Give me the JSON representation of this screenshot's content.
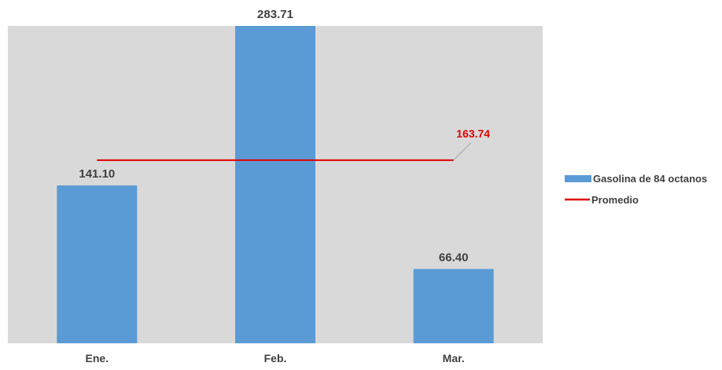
{
  "chart_data": {
    "type": "bar",
    "categories": [
      "Ene.",
      "Feb.",
      "Mar."
    ],
    "series": [
      {
        "name": "Gasolina de 84 octanos",
        "values": [
          141.1,
          283.71,
          66.4
        ],
        "labels": [
          "141.10",
          "283.71",
          "66.40"
        ],
        "color": "#5b9bd5"
      }
    ],
    "average": {
      "name": "Promedio",
      "value": 163.74,
      "label": "163.74",
      "color": "#e00000"
    },
    "ylim": [
      0,
      283.71
    ],
    "grid": false,
    "legend_position": "right",
    "plot_background": "#d9d9d9"
  }
}
